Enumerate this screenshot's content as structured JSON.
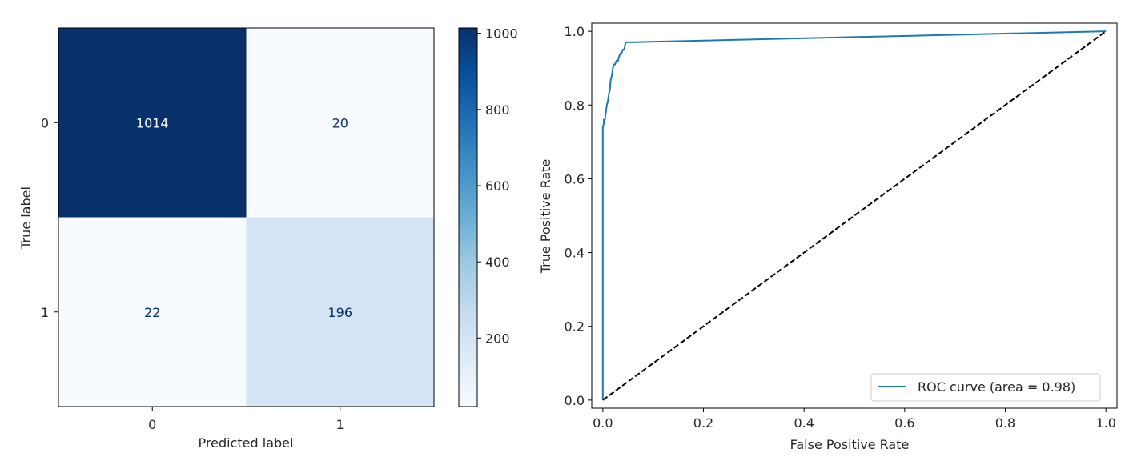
{
  "chart_data": [
    {
      "type": "heatmap",
      "xlabel": "Predicted label",
      "ylabel": "True label",
      "x_categories": [
        "0",
        "1"
      ],
      "y_categories": [
        "0",
        "1"
      ],
      "values": [
        [
          1014,
          20
        ],
        [
          22,
          196
        ]
      ],
      "colormap": "Blues",
      "colorbar": {
        "min": 20,
        "max": 1014,
        "ticks": [
          200,
          400,
          600,
          800,
          1000
        ]
      },
      "colors": {
        "high": "#08306b",
        "low": "#f7fbff",
        "text_on_dark": "#f7fbff",
        "text_on_light": "#08306b"
      }
    },
    {
      "type": "line",
      "xlabel": "False Positive Rate",
      "ylabel": "True Positive Rate",
      "xlim": [
        0.0,
        1.0
      ],
      "ylim": [
        0.0,
        1.0
      ],
      "xticks": [
        "0.0",
        "0.2",
        "0.4",
        "0.6",
        "0.8",
        "1.0"
      ],
      "yticks": [
        "0.0",
        "0.2",
        "0.4",
        "0.6",
        "0.8",
        "1.0"
      ],
      "legend_position": "lower right",
      "series": [
        {
          "name": "ROC curve (area = 0.98)",
          "color": "#1f77b4",
          "style": "solid",
          "x": [
            0.0,
            0.0,
            0.002,
            0.002,
            0.004,
            0.006,
            0.008,
            0.01,
            0.012,
            0.014,
            0.015,
            0.016,
            0.018,
            0.019,
            0.02,
            0.022,
            0.024,
            0.027,
            0.03,
            0.032,
            0.035,
            0.037,
            0.04,
            0.042,
            0.044,
            0.045,
            1.0
          ],
          "y": [
            0.0,
            0.74,
            0.75,
            0.76,
            0.76,
            0.78,
            0.8,
            0.81,
            0.83,
            0.84,
            0.86,
            0.87,
            0.88,
            0.89,
            0.9,
            0.91,
            0.91,
            0.92,
            0.92,
            0.93,
            0.94,
            0.94,
            0.95,
            0.95,
            0.96,
            0.97,
            1.0
          ]
        },
        {
          "name": "",
          "color": "#000000",
          "style": "dashed",
          "x": [
            0.0,
            1.0
          ],
          "y": [
            0.0,
            1.0
          ]
        }
      ]
    }
  ]
}
